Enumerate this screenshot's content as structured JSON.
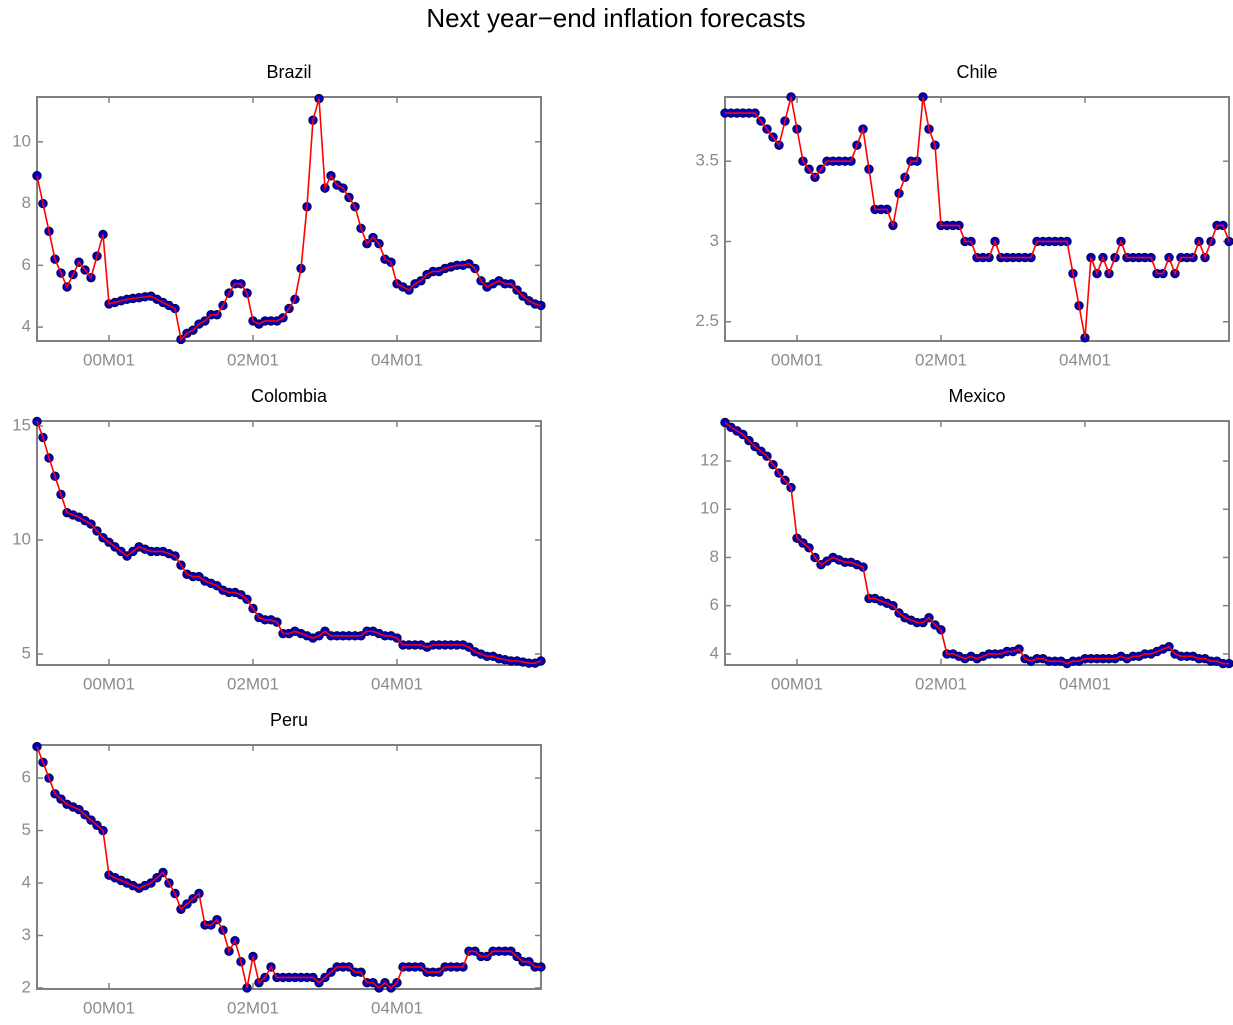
{
  "title": "Next year−end inflation forecasts",
  "chart_data": [
    {
      "type": "line",
      "title": "Brazil",
      "color": "#ff0000",
      "marker_color": "#0000cc",
      "x": [
        1999,
        1999.083,
        1999.167,
        1999.25,
        1999.333,
        1999.417,
        1999.5,
        1999.583,
        1999.667,
        1999.75,
        1999.833,
        1999.917,
        2000,
        2000.083,
        2000.167,
        2000.25,
        2000.333,
        2000.417,
        2000.5,
        2000.583,
        2000.667,
        2000.75,
        2000.833,
        2000.917,
        2001,
        2001.083,
        2001.167,
        2001.25,
        2001.333,
        2001.417,
        2001.5,
        2001.583,
        2001.667,
        2001.75,
        2001.833,
        2001.917,
        2002,
        2002.083,
        2002.167,
        2002.25,
        2002.333,
        2002.417,
        2002.5,
        2002.583,
        2002.667,
        2002.75,
        2002.833,
        2002.917,
        2003,
        2003.083,
        2003.167,
        2003.25,
        2003.333,
        2003.417,
        2003.5,
        2003.583,
        2003.667,
        2003.75,
        2003.833,
        2003.917,
        2004,
        2004.083,
        2004.167,
        2004.25,
        2004.333,
        2004.417,
        2004.5,
        2004.583,
        2004.667,
        2004.75,
        2004.833,
        2004.917,
        2005,
        2005.083,
        2005.167,
        2005.25,
        2005.333,
        2005.417,
        2005.5,
        2005.583,
        2005.667,
        2005.75,
        2005.833,
        2005.917,
        2006
      ],
      "values": [
        8.9,
        8.0,
        7.1,
        6.2,
        5.75,
        5.3,
        5.7,
        6.1,
        5.85,
        5.6,
        6.3,
        7.0,
        4.75,
        4.8,
        4.85,
        4.9,
        4.93,
        4.95,
        4.98,
        5.0,
        4.9,
        4.8,
        4.7,
        4.6,
        3.6,
        3.8,
        3.9,
        4.1,
        4.2,
        4.4,
        4.4,
        4.7,
        5.1,
        5.4,
        5.4,
        5.1,
        4.2,
        4.1,
        4.2,
        4.2,
        4.2,
        4.3,
        4.6,
        4.9,
        5.9,
        7.9,
        10.7,
        11.4,
        8.5,
        8.9,
        8.6,
        8.5,
        8.2,
        7.9,
        7.2,
        6.7,
        6.9,
        6.7,
        6.2,
        6.1,
        5.4,
        5.3,
        5.2,
        5.4,
        5.5,
        5.7,
        5.8,
        5.8,
        5.9,
        5.95,
        6.0,
        6.0,
        6.05,
        5.9,
        5.5,
        5.3,
        5.4,
        5.5,
        5.4,
        5.4,
        5.2,
        5.0,
        4.85,
        4.75,
        4.7
      ],
      "xlim": [
        1999,
        2006
      ],
      "xticks": [
        {
          "value": 2000,
          "label": "00M01"
        },
        {
          "value": 2002,
          "label": "02M01"
        },
        {
          "value": 2004,
          "label": "04M01"
        }
      ],
      "ylim": [
        3.55,
        11.45
      ],
      "yticks": [
        4,
        6,
        8,
        10
      ]
    },
    {
      "type": "line",
      "title": "Chile",
      "color": "#ff0000",
      "marker_color": "#0000cc",
      "x": [
        1999,
        1999.083,
        1999.167,
        1999.25,
        1999.333,
        1999.417,
        1999.5,
        1999.583,
        1999.667,
        1999.75,
        1999.833,
        1999.917,
        2000,
        2000.083,
        2000.167,
        2000.25,
        2000.333,
        2000.417,
        2000.5,
        2000.583,
        2000.667,
        2000.75,
        2000.833,
        2000.917,
        2001,
        2001.083,
        2001.167,
        2001.25,
        2001.333,
        2001.417,
        2001.5,
        2001.583,
        2001.667,
        2001.75,
        2001.833,
        2001.917,
        2002,
        2002.083,
        2002.167,
        2002.25,
        2002.333,
        2002.417,
        2002.5,
        2002.583,
        2002.667,
        2002.75,
        2002.833,
        2002.917,
        2003,
        2003.083,
        2003.167,
        2003.25,
        2003.333,
        2003.417,
        2003.5,
        2003.583,
        2003.667,
        2003.75,
        2003.833,
        2003.917,
        2004,
        2004.083,
        2004.167,
        2004.25,
        2004.333,
        2004.417,
        2004.5,
        2004.583,
        2004.667,
        2004.75,
        2004.833,
        2004.917,
        2005,
        2005.083,
        2005.167,
        2005.25,
        2005.333,
        2005.417,
        2005.5,
        2005.583,
        2005.667,
        2005.75,
        2005.833,
        2005.917,
        2006
      ],
      "values": [
        3.8,
        3.8,
        3.8,
        3.8,
        3.8,
        3.8,
        3.75,
        3.7,
        3.65,
        3.6,
        3.75,
        3.9,
        3.7,
        3.5,
        3.45,
        3.4,
        3.45,
        3.5,
        3.5,
        3.5,
        3.5,
        3.5,
        3.6,
        3.7,
        3.45,
        3.2,
        3.2,
        3.2,
        3.1,
        3.3,
        3.4,
        3.5,
        3.5,
        3.9,
        3.7,
        3.6,
        3.1,
        3.1,
        3.1,
        3.1,
        3.0,
        3.0,
        2.9,
        2.9,
        2.9,
        3.0,
        2.9,
        2.9,
        2.9,
        2.9,
        2.9,
        2.9,
        3.0,
        3.0,
        3.0,
        3.0,
        3.0,
        3.0,
        2.8,
        2.6,
        2.4,
        2.9,
        2.8,
        2.9,
        2.8,
        2.9,
        3.0,
        2.9,
        2.9,
        2.9,
        2.9,
        2.9,
        2.8,
        2.8,
        2.9,
        2.8,
        2.9,
        2.9,
        2.9,
        3.0,
        2.9,
        3.0,
        3.1,
        3.1,
        3.0
      ],
      "xlim": [
        1999,
        2006
      ],
      "xticks": [
        {
          "value": 2000,
          "label": "00M01"
        },
        {
          "value": 2002,
          "label": "02M01"
        },
        {
          "value": 2004,
          "label": "04M01"
        }
      ],
      "ylim": [
        2.38,
        3.9
      ],
      "yticks": [
        2.5,
        3,
        3.5
      ]
    },
    {
      "type": "line",
      "title": "Colombia",
      "color": "#ff0000",
      "marker_color": "#0000cc",
      "x": [
        1999,
        1999.083,
        1999.167,
        1999.25,
        1999.333,
        1999.417,
        1999.5,
        1999.583,
        1999.667,
        1999.75,
        1999.833,
        1999.917,
        2000,
        2000.083,
        2000.167,
        2000.25,
        2000.333,
        2000.417,
        2000.5,
        2000.583,
        2000.667,
        2000.75,
        2000.833,
        2000.917,
        2001,
        2001.083,
        2001.167,
        2001.25,
        2001.333,
        2001.417,
        2001.5,
        2001.583,
        2001.667,
        2001.75,
        2001.833,
        2001.917,
        2002,
        2002.083,
        2002.167,
        2002.25,
        2002.333,
        2002.417,
        2002.5,
        2002.583,
        2002.667,
        2002.75,
        2002.833,
        2002.917,
        2003,
        2003.083,
        2003.167,
        2003.25,
        2003.333,
        2003.417,
        2003.5,
        2003.583,
        2003.667,
        2003.75,
        2003.833,
        2003.917,
        2004,
        2004.083,
        2004.167,
        2004.25,
        2004.333,
        2004.417,
        2004.5,
        2004.583,
        2004.667,
        2004.75,
        2004.833,
        2004.917,
        2005,
        2005.083,
        2005.167,
        2005.25,
        2005.333,
        2005.417,
        2005.5,
        2005.583,
        2005.667,
        2005.75,
        2005.833,
        2005.917,
        2006
      ],
      "values": [
        15.2,
        14.5,
        13.6,
        12.8,
        12.0,
        11.2,
        11.1,
        11.0,
        10.85,
        10.7,
        10.4,
        10.1,
        9.9,
        9.7,
        9.5,
        9.3,
        9.5,
        9.7,
        9.6,
        9.5,
        9.5,
        9.5,
        9.4,
        9.3,
        8.9,
        8.5,
        8.4,
        8.4,
        8.2,
        8.1,
        8.0,
        7.8,
        7.7,
        7.7,
        7.6,
        7.4,
        7.0,
        6.6,
        6.5,
        6.5,
        6.4,
        5.9,
        5.9,
        6.0,
        5.9,
        5.8,
        5.7,
        5.8,
        6.0,
        5.8,
        5.8,
        5.8,
        5.8,
        5.8,
        5.8,
        6.0,
        6.0,
        5.9,
        5.8,
        5.8,
        5.7,
        5.4,
        5.4,
        5.4,
        5.4,
        5.3,
        5.4,
        5.4,
        5.4,
        5.4,
        5.4,
        5.4,
        5.3,
        5.1,
        5.0,
        4.9,
        4.9,
        4.8,
        4.75,
        4.7,
        4.7,
        4.65,
        4.6,
        4.6,
        4.7
      ],
      "xlim": [
        1999,
        2006
      ],
      "xticks": [
        {
          "value": 2000,
          "label": "00M01"
        },
        {
          "value": 2002,
          "label": "02M01"
        },
        {
          "value": 2004,
          "label": "04M01"
        }
      ],
      "ylim": [
        4.52,
        15.22
      ],
      "yticks": [
        5,
        10,
        15
      ]
    },
    {
      "type": "line",
      "title": "Mexico",
      "color": "#ff0000",
      "marker_color": "#0000cc",
      "x": [
        1999,
        1999.083,
        1999.167,
        1999.25,
        1999.333,
        1999.417,
        1999.5,
        1999.583,
        1999.667,
        1999.75,
        1999.833,
        1999.917,
        2000,
        2000.083,
        2000.167,
        2000.25,
        2000.333,
        2000.417,
        2000.5,
        2000.583,
        2000.667,
        2000.75,
        2000.833,
        2000.917,
        2001,
        2001.083,
        2001.167,
        2001.25,
        2001.333,
        2001.417,
        2001.5,
        2001.583,
        2001.667,
        2001.75,
        2001.833,
        2001.917,
        2002,
        2002.083,
        2002.167,
        2002.25,
        2002.333,
        2002.417,
        2002.5,
        2002.583,
        2002.667,
        2002.75,
        2002.833,
        2002.917,
        2003,
        2003.083,
        2003.167,
        2003.25,
        2003.333,
        2003.417,
        2003.5,
        2003.583,
        2003.667,
        2003.75,
        2003.833,
        2003.917,
        2004,
        2004.083,
        2004.167,
        2004.25,
        2004.333,
        2004.417,
        2004.5,
        2004.583,
        2004.667,
        2004.75,
        2004.833,
        2004.917,
        2005,
        2005.083,
        2005.167,
        2005.25,
        2005.333,
        2005.417,
        2005.5,
        2005.583,
        2005.667,
        2005.75,
        2005.833,
        2005.917,
        2006
      ],
      "values": [
        13.6,
        13.4,
        13.25,
        13.1,
        12.85,
        12.6,
        12.4,
        12.2,
        11.85,
        11.5,
        11.2,
        10.9,
        8.8,
        8.6,
        8.4,
        8.0,
        7.7,
        7.85,
        8.0,
        7.9,
        7.8,
        7.8,
        7.7,
        7.6,
        6.3,
        6.3,
        6.2,
        6.1,
        6.0,
        5.7,
        5.5,
        5.4,
        5.3,
        5.3,
        5.5,
        5.2,
        5.0,
        4.0,
        4.0,
        3.9,
        3.8,
        3.9,
        3.8,
        3.9,
        4.0,
        4.0,
        4.0,
        4.1,
        4.1,
        4.2,
        3.8,
        3.7,
        3.8,
        3.8,
        3.7,
        3.7,
        3.7,
        3.6,
        3.7,
        3.7,
        3.8,
        3.8,
        3.8,
        3.8,
        3.8,
        3.8,
        3.9,
        3.8,
        3.9,
        3.9,
        4.0,
        4.0,
        4.1,
        4.2,
        4.3,
        4.0,
        3.9,
        3.9,
        3.9,
        3.8,
        3.8,
        3.7,
        3.7,
        3.6,
        3.6
      ],
      "xlim": [
        1999,
        2006
      ],
      "xticks": [
        {
          "value": 2000,
          "label": "00M01"
        },
        {
          "value": 2002,
          "label": "02M01"
        },
        {
          "value": 2004,
          "label": "04M01"
        }
      ],
      "ylim": [
        3.54,
        13.66
      ],
      "yticks": [
        4,
        6,
        8,
        10,
        12
      ]
    },
    {
      "type": "line",
      "title": "Peru",
      "color": "#ff0000",
      "marker_color": "#0000cc",
      "x": [
        1999,
        1999.083,
        1999.167,
        1999.25,
        1999.333,
        1999.417,
        1999.5,
        1999.583,
        1999.667,
        1999.75,
        1999.833,
        1999.917,
        2000,
        2000.083,
        2000.167,
        2000.25,
        2000.333,
        2000.417,
        2000.5,
        2000.583,
        2000.667,
        2000.75,
        2000.833,
        2000.917,
        2001,
        2001.083,
        2001.167,
        2001.25,
        2001.333,
        2001.417,
        2001.5,
        2001.583,
        2001.667,
        2001.75,
        2001.833,
        2001.917,
        2002,
        2002.083,
        2002.167,
        2002.25,
        2002.333,
        2002.417,
        2002.5,
        2002.583,
        2002.667,
        2002.75,
        2002.833,
        2002.917,
        2003,
        2003.083,
        2003.167,
        2003.25,
        2003.333,
        2003.417,
        2003.5,
        2003.583,
        2003.667,
        2003.75,
        2003.833,
        2003.917,
        2004,
        2004.083,
        2004.167,
        2004.25,
        2004.333,
        2004.417,
        2004.5,
        2004.583,
        2004.667,
        2004.75,
        2004.833,
        2004.917,
        2005,
        2005.083,
        2005.167,
        2005.25,
        2005.333,
        2005.417,
        2005.5,
        2005.583,
        2005.667,
        2005.75,
        2005.833,
        2005.917,
        2006
      ],
      "values": [
        6.6,
        6.3,
        6.0,
        5.7,
        5.6,
        5.5,
        5.45,
        5.4,
        5.3,
        5.2,
        5.1,
        5.0,
        4.15,
        4.1,
        4.05,
        4.0,
        3.95,
        3.9,
        3.95,
        4.0,
        4.1,
        4.2,
        4.0,
        3.8,
        3.5,
        3.6,
        3.7,
        3.8,
        3.2,
        3.2,
        3.3,
        3.1,
        2.7,
        2.9,
        2.5,
        2.0,
        2.6,
        2.1,
        2.2,
        2.4,
        2.2,
        2.2,
        2.2,
        2.2,
        2.2,
        2.2,
        2.2,
        2.1,
        2.2,
        2.3,
        2.4,
        2.4,
        2.4,
        2.3,
        2.3,
        2.1,
        2.1,
        2.0,
        2.1,
        2.0,
        2.1,
        2.4,
        2.4,
        2.4,
        2.4,
        2.3,
        2.3,
        2.3,
        2.4,
        2.4,
        2.4,
        2.4,
        2.7,
        2.7,
        2.6,
        2.6,
        2.7,
        2.7,
        2.7,
        2.7,
        2.6,
        2.5,
        2.5,
        2.4,
        2.4
      ],
      "xlim": [
        1999,
        2006
      ],
      "xticks": [
        {
          "value": 2000,
          "label": "00M01"
        },
        {
          "value": 2002,
          "label": "02M01"
        },
        {
          "value": 2004,
          "label": "04M01"
        }
      ],
      "ylim": [
        1.98,
        6.63
      ],
      "yticks": [
        2,
        3,
        4,
        5,
        6
      ]
    }
  ]
}
